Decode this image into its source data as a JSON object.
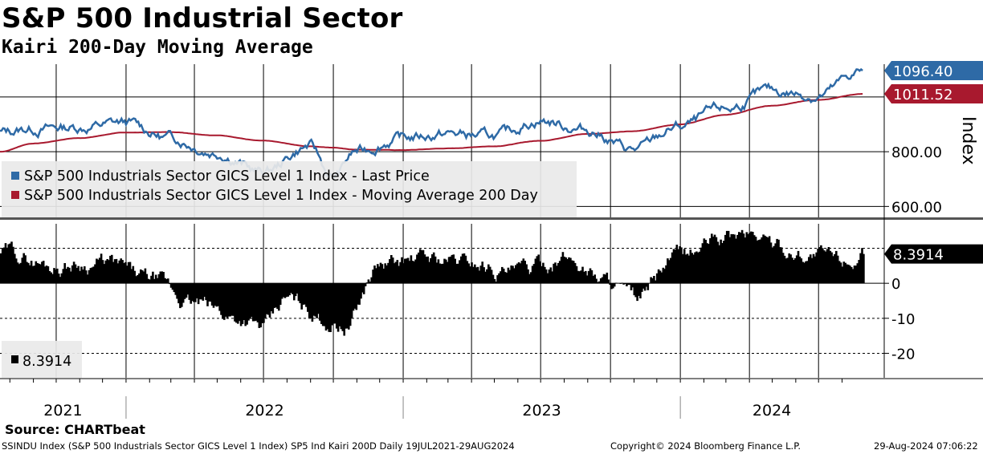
{
  "title": "S&P 500 Industrial Sector",
  "subtitle": "Kairi 200-Day Moving Average",
  "source": "Source: CHARTbeat",
  "footer": {
    "description": "SSINDU Index (S&P 500 Industrials Sector GICS Level 1 Index) SP5 Ind Kairi 200D  Daily 19JUL2021-29AUG2024",
    "copyright": "Copyright© 2024 Bloomberg Finance L.P.",
    "timestamp": "29-Aug-2024 07:06:22"
  },
  "colors": {
    "price": "#2e6aa6",
    "ma": "#a8192e",
    "kairi": "#000000"
  },
  "chart_data": [
    {
      "type": "line",
      "ylabel": "Index",
      "ylim": [
        560,
        1120
      ],
      "yticks": [
        {
          "value": 600,
          "label": "600.00"
        },
        {
          "value": 800,
          "label": "800.00"
        }
      ],
      "last_value_labels": [
        {
          "series": "S&P 500 Industrials Sector GICS Level 1 Index - Last Price",
          "label": "1096.40",
          "value": 1096.4,
          "color": "#2e6aa6"
        },
        {
          "series": "S&P 500 Industrials Sector GICS Level 1 Index - Moving Average 200 Day",
          "label": "1011.52",
          "value": 1011.52,
          "color": "#a8192e"
        }
      ],
      "legend": {
        "placement": "bottom-left",
        "entries": [
          {
            "label": "S&P 500 Industrials Sector GICS Level 1 Index - Last Price",
            "color": "#2e6aa6"
          },
          {
            "label": "S&P 500 Industrials Sector GICS Level 1 Index - Moving Average 200 Day",
            "color": "#a8192e"
          }
        ]
      },
      "x": [
        "2021-07-19",
        "2021-08-31",
        "2021-10-31",
        "2021-12-31",
        "2022-02-28",
        "2022-04-30",
        "2022-06-30",
        "2022-08-31",
        "2022-09-30",
        "2022-10-31",
        "2022-12-31",
        "2023-02-28",
        "2023-04-30",
        "2023-06-30",
        "2023-08-31",
        "2023-10-31",
        "2023-12-31",
        "2024-02-29",
        "2024-04-30",
        "2024-06-30",
        "2024-08-29"
      ],
      "series": [
        {
          "name": "S&P 500 Industrials Sector GICS Level 1 Index - Last Price",
          "values": [
            870,
            885,
            890,
            905,
            850,
            800,
            725,
            820,
            705,
            800,
            850,
            865,
            855,
            915,
            880,
            805,
            890,
            955,
            1020,
            1005,
            1096.4
          ]
        },
        {
          "name": "S&P 500 Industrials Sector GICS Level 1 Index - Moving Average 200 Day",
          "values": [
            800,
            830,
            850,
            870,
            872,
            860,
            840,
            820,
            815,
            808,
            806,
            812,
            820,
            840,
            865,
            875,
            900,
            935,
            968,
            990,
            1011.52
          ]
        }
      ],
      "grid": true
    },
    {
      "type": "bar",
      "ylim": [
        -27,
        17
      ],
      "yticks": [
        {
          "value": 0,
          "label": "0"
        },
        {
          "value": -10,
          "label": "-10"
        },
        {
          "value": -20,
          "label": "-20"
        }
      ],
      "last_value_label": "8.3914",
      "legend": {
        "placement": "bottom-left",
        "entries": [
          {
            "label": "8.3914",
            "color": "#000000"
          }
        ]
      },
      "x": [
        "2021-07-19",
        "2021-09-30",
        "2021-11-30",
        "2022-01-31",
        "2022-03-31",
        "2022-05-31",
        "2022-06-30",
        "2022-07-31",
        "2022-09-30",
        "2022-10-15",
        "2022-11-30",
        "2023-01-31",
        "2023-03-31",
        "2023-05-31",
        "2023-07-31",
        "2023-09-30",
        "2023-10-31",
        "2023-12-31",
        "2024-02-29",
        "2024-03-31",
        "2024-05-31",
        "2024-07-31",
        "2024-08-29"
      ],
      "values": [
        9,
        5,
        6,
        1,
        -6,
        -10,
        -13,
        -5,
        -11,
        -12,
        5,
        7,
        6,
        3,
        7,
        1,
        -5,
        8,
        13,
        14,
        9,
        7,
        8.3914
      ],
      "grid": true
    }
  ],
  "x_axis": {
    "years": [
      "2021",
      "2022",
      "2023",
      "2024"
    ]
  }
}
